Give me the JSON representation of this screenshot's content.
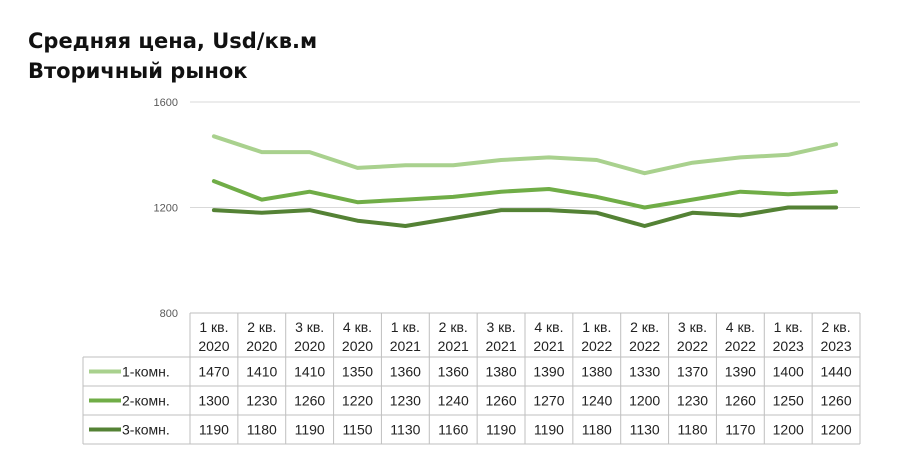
{
  "title": "Средняя цена, Usd/кв.м",
  "subtitle": "Вторичный рынок",
  "chart_data": {
    "type": "line",
    "categories": [
      [
        "1 кв.",
        "2020"
      ],
      [
        "2 кв.",
        "2020"
      ],
      [
        "3 кв.",
        "2020"
      ],
      [
        "4 кв.",
        "2020"
      ],
      [
        "1 кв.",
        "2021"
      ],
      [
        "2 кв.",
        "2021"
      ],
      [
        "3 кв.",
        "2021"
      ],
      [
        "4 кв.",
        "2021"
      ],
      [
        "1 кв.",
        "2022"
      ],
      [
        "2 кв.",
        "2022"
      ],
      [
        "3 кв.",
        "2022"
      ],
      [
        "4 кв.",
        "2022"
      ],
      [
        "1 кв.",
        "2023"
      ],
      [
        "2 кв.",
        "2023"
      ]
    ],
    "series": [
      {
        "name": "1-комн.",
        "color": "#a9d18e",
        "values": [
          1470,
          1410,
          1410,
          1350,
          1360,
          1360,
          1380,
          1390,
          1380,
          1330,
          1370,
          1390,
          1400,
          1440
        ]
      },
      {
        "name": "2-комн.",
        "color": "#70ad47",
        "values": [
          1300,
          1230,
          1260,
          1220,
          1230,
          1240,
          1260,
          1270,
          1240,
          1200,
          1230,
          1260,
          1250,
          1260
        ]
      },
      {
        "name": "3-комн.",
        "color": "#548235",
        "values": [
          1190,
          1180,
          1190,
          1150,
          1130,
          1160,
          1190,
          1190,
          1180,
          1130,
          1180,
          1170,
          1200,
          1200
        ]
      }
    ],
    "y_ticks": [
      800,
      1200,
      1600
    ],
    "ylim": [
      800,
      1600
    ],
    "grid": true,
    "legend": "data-table"
  }
}
